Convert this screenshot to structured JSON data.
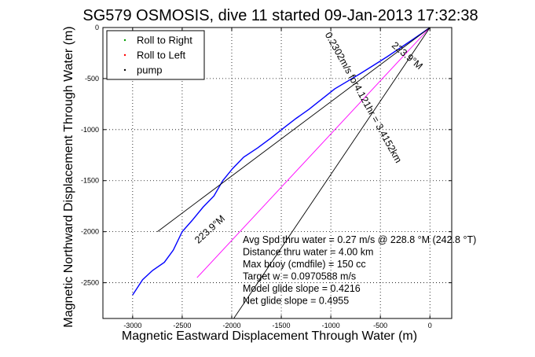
{
  "chart_data": {
    "type": "line",
    "title": "SG579 OSMOSIS, dive 11 started 09-Jan-2013 17:32:38",
    "xlabel": "Magnetic Eastward Displacement Through Water (m)",
    "ylabel": "Magnetic Northward Displacement Through Water (m)",
    "xlim": [
      -3300,
      220
    ],
    "ylim": [
      -2850,
      0
    ],
    "xticks": [
      -3000,
      -2500,
      -2000,
      -1500,
      -1000,
      -500,
      0
    ],
    "yticks": [
      -2500,
      -2000,
      -1500,
      -1000,
      -500,
      0
    ],
    "xtick_labels": [
      "-3000",
      "-2500",
      "-2000",
      "-1500",
      "-1000",
      "-500",
      "0"
    ],
    "ytick_labels": [
      "-2500",
      "-2000",
      "-1500",
      "-1000",
      "-500",
      "0"
    ],
    "grid": true,
    "legend_position": "top-left",
    "legend": [
      {
        "label": "Roll to Right",
        "color": "#00a000",
        "marker": "dot"
      },
      {
        "label": "Roll to Left",
        "color": "#ff0000",
        "marker": "dot"
      },
      {
        "label": "pump",
        "color": "#000000",
        "marker": "dot"
      }
    ],
    "series": [
      {
        "color": "#0000ff",
        "points": [
          [
            0,
            0
          ],
          [
            -80,
            -55
          ],
          [
            -170,
            -115
          ],
          [
            -300,
            -200
          ],
          [
            -430,
            -285
          ],
          [
            -560,
            -365
          ],
          [
            -700,
            -450
          ],
          [
            -830,
            -525
          ],
          [
            -960,
            -600
          ],
          [
            -1090,
            -700
          ],
          [
            -1220,
            -800
          ],
          [
            -1350,
            -890
          ],
          [
            -1470,
            -980
          ],
          [
            -1600,
            -1080
          ],
          [
            -1740,
            -1180
          ],
          [
            -1880,
            -1270
          ],
          [
            -1990,
            -1380
          ],
          [
            -2090,
            -1500
          ],
          [
            -2180,
            -1650
          ],
          [
            -2290,
            -1760
          ],
          [
            -2400,
            -1890
          ],
          [
            -2500,
            -2000
          ],
          [
            -2590,
            -2180
          ],
          [
            -2680,
            -2300
          ],
          [
            -2800,
            -2380
          ],
          [
            -2900,
            -2470
          ],
          [
            -2960,
            -2560
          ],
          [
            -3000,
            -2620
          ]
        ]
      },
      {
        "color": "#ff00ff",
        "points": [
          [
            0,
            0
          ],
          [
            -2350,
            -2450
          ]
        ]
      },
      {
        "color": "#000000",
        "points": [
          [
            0,
            0
          ],
          [
            -2750,
            -2000
          ]
        ]
      },
      {
        "color": "#000000",
        "points": [
          [
            0,
            0
          ],
          [
            -1980,
            -2850
          ]
        ]
      }
    ],
    "annotations": [
      {
        "text": "223.9°M",
        "x": -250,
        "y": -300,
        "angle": 40
      },
      {
        "text": "0.2302m/s for4.121hr = 3.4152km",
        "x": -700,
        "y": -700,
        "angle": 61
      },
      {
        "text": "223.9°M",
        "x": -2200,
        "y": -2000,
        "angle": -42
      }
    ],
    "info": [
      "Avg Spd thru water =  0.27 m/s @ 228.8   °M (242.8 °T)",
      "Distance thru water =  4.00 km",
      "Max buoy (cmdfile) = 150 cc",
      "Target w = 0.0970588 m/s",
      "Model glide slope = 0.4216",
      "Net glide slope = 0.4955"
    ]
  }
}
